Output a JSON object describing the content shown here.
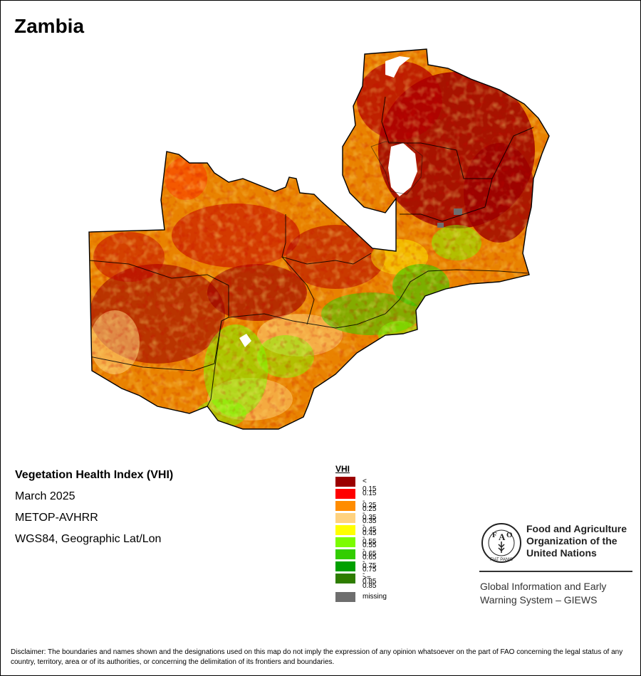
{
  "map": {
    "country": "Zambia"
  },
  "info": {
    "product": "Vegetation Health Index (VHI)",
    "date": "March 2025",
    "sensor": "METOP-AVHRR",
    "projection": "WGS84, Geographic Lat/Lon"
  },
  "legend": {
    "title": "VHI",
    "classes": [
      {
        "label": "< 0.15",
        "color": "#9b0000"
      },
      {
        "label": "0.15 - 0.25",
        "color": "#ff0000"
      },
      {
        "label": "0.25 - 0.35",
        "color": "#ff8c00"
      },
      {
        "label": "0.35 - 0.45",
        "color": "#ffd27f"
      },
      {
        "label": "0.45 - 0.55",
        "color": "#ffff00"
      },
      {
        "label": "0.55 - 0.65",
        "color": "#7cfc00"
      },
      {
        "label": "0.65 - 0.75",
        "color": "#32cd00"
      },
      {
        "label": "0.75 - 0.85",
        "color": "#00a000"
      },
      {
        "label": ">= 0.85",
        "color": "#2e7d00"
      }
    ],
    "missing": {
      "label": "missing",
      "color": "#6e6e6e"
    }
  },
  "logo": {
    "letters": [
      "F",
      "A",
      "O"
    ],
    "motto": "FIAT PANIS",
    "org_line1": "Food and Agriculture",
    "org_line2": "Organization of the",
    "org_line3": "United Nations"
  },
  "giews": {
    "line1": "Global Information and Early",
    "line2": "Warning System – GIEWS"
  },
  "disclaimer": "Disclaimer: The boundaries and names shown and the designations used on this map do not imply the expression of any opinion whatsoever on the part of FAO concerning the legal status of any country, territory, area or of its authorities, or concerning the delimitation of its frontiers and boundaries."
}
